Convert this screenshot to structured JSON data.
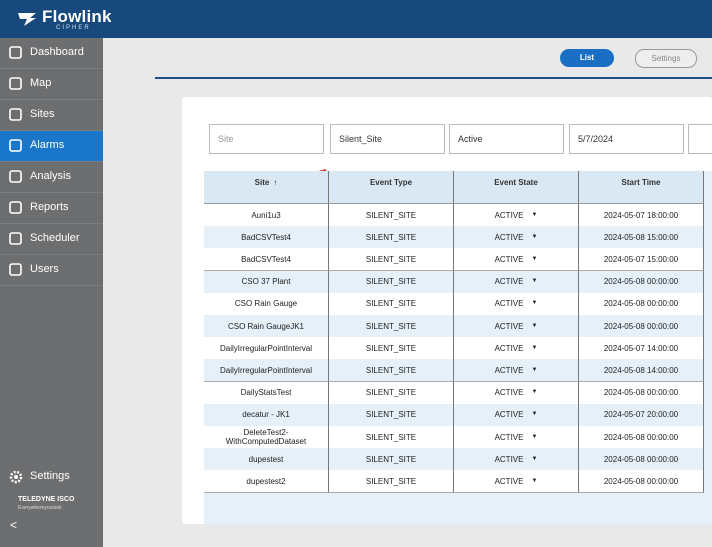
{
  "header": {
    "brand": "Flowlink",
    "sub": "CIPHER"
  },
  "sidebar": {
    "items": [
      "Dashboard",
      "Map",
      "Sites",
      "Alarms",
      "Analysis",
      "Reports",
      "Scheduler",
      "Users"
    ],
    "settings": "Settings",
    "logo": "TELEDYNE ISCO",
    "tagline": "Everywhereyoulook",
    "collapse": "<"
  },
  "toolbar": {
    "buttons": [
      "List",
      "Settings"
    ]
  },
  "filters": [
    "Site",
    "Silent_Site",
    "Active",
    "5/7/2024"
  ],
  "table": {
    "columns": [
      "Site",
      "Event Type",
      "Event State",
      "Start Time"
    ],
    "rows": [
      [
        "Auni1u3",
        "SILENT_SITE",
        "ACTIVE",
        "2024-05-07 18:00:00"
      ],
      [
        "BadCSVTest4",
        "SILENT_SITE",
        "ACTIVE",
        "2024-05-08 15:00:00"
      ],
      [
        "BadCSVTest4",
        "SILENT_SITE",
        "ACTIVE",
        "2024-05-07 15:00:00"
      ],
      [
        "CSO 37 Plant",
        "SILENT_SITE",
        "ACTIVE",
        "2024-05-08 00:00:00"
      ],
      [
        "CSO Rain Gauge",
        "SILENT_SITE",
        "ACTIVE",
        "2024-05-08 00:00:00"
      ],
      [
        "CSO Rain GaugeJK1",
        "SILENT_SITE",
        "ACTIVE",
        "2024-05-08 00:00:00"
      ],
      [
        "DailyIrregularPointInterval",
        "SILENT_SITE",
        "ACTIVE",
        "2024-05-07 14:00:00"
      ],
      [
        "DailyIrregularPointInterval",
        "SILENT_SITE",
        "ACTIVE",
        "2024-05-08 14:00:00"
      ],
      [
        "DailyStatsTest",
        "SILENT_SITE",
        "ACTIVE",
        "2024-05-08 00:00:00"
      ],
      [
        "decatur - JK1",
        "SILENT_SITE",
        "ACTIVE",
        "2024-05-07 20:00:00"
      ],
      [
        "DeleteTest2-WithComputedDataset",
        "SILENT_SITE",
        "ACTIVE",
        "2024-05-08 00:00:00"
      ],
      [
        "dupestest",
        "SILENT_SITE",
        "ACTIVE",
        "2024-05-08 00:00:00"
      ],
      [
        "dupestest2",
        "SILENT_SITE",
        "ACTIVE",
        "2024-05-08 00:00:00"
      ]
    ]
  }
}
